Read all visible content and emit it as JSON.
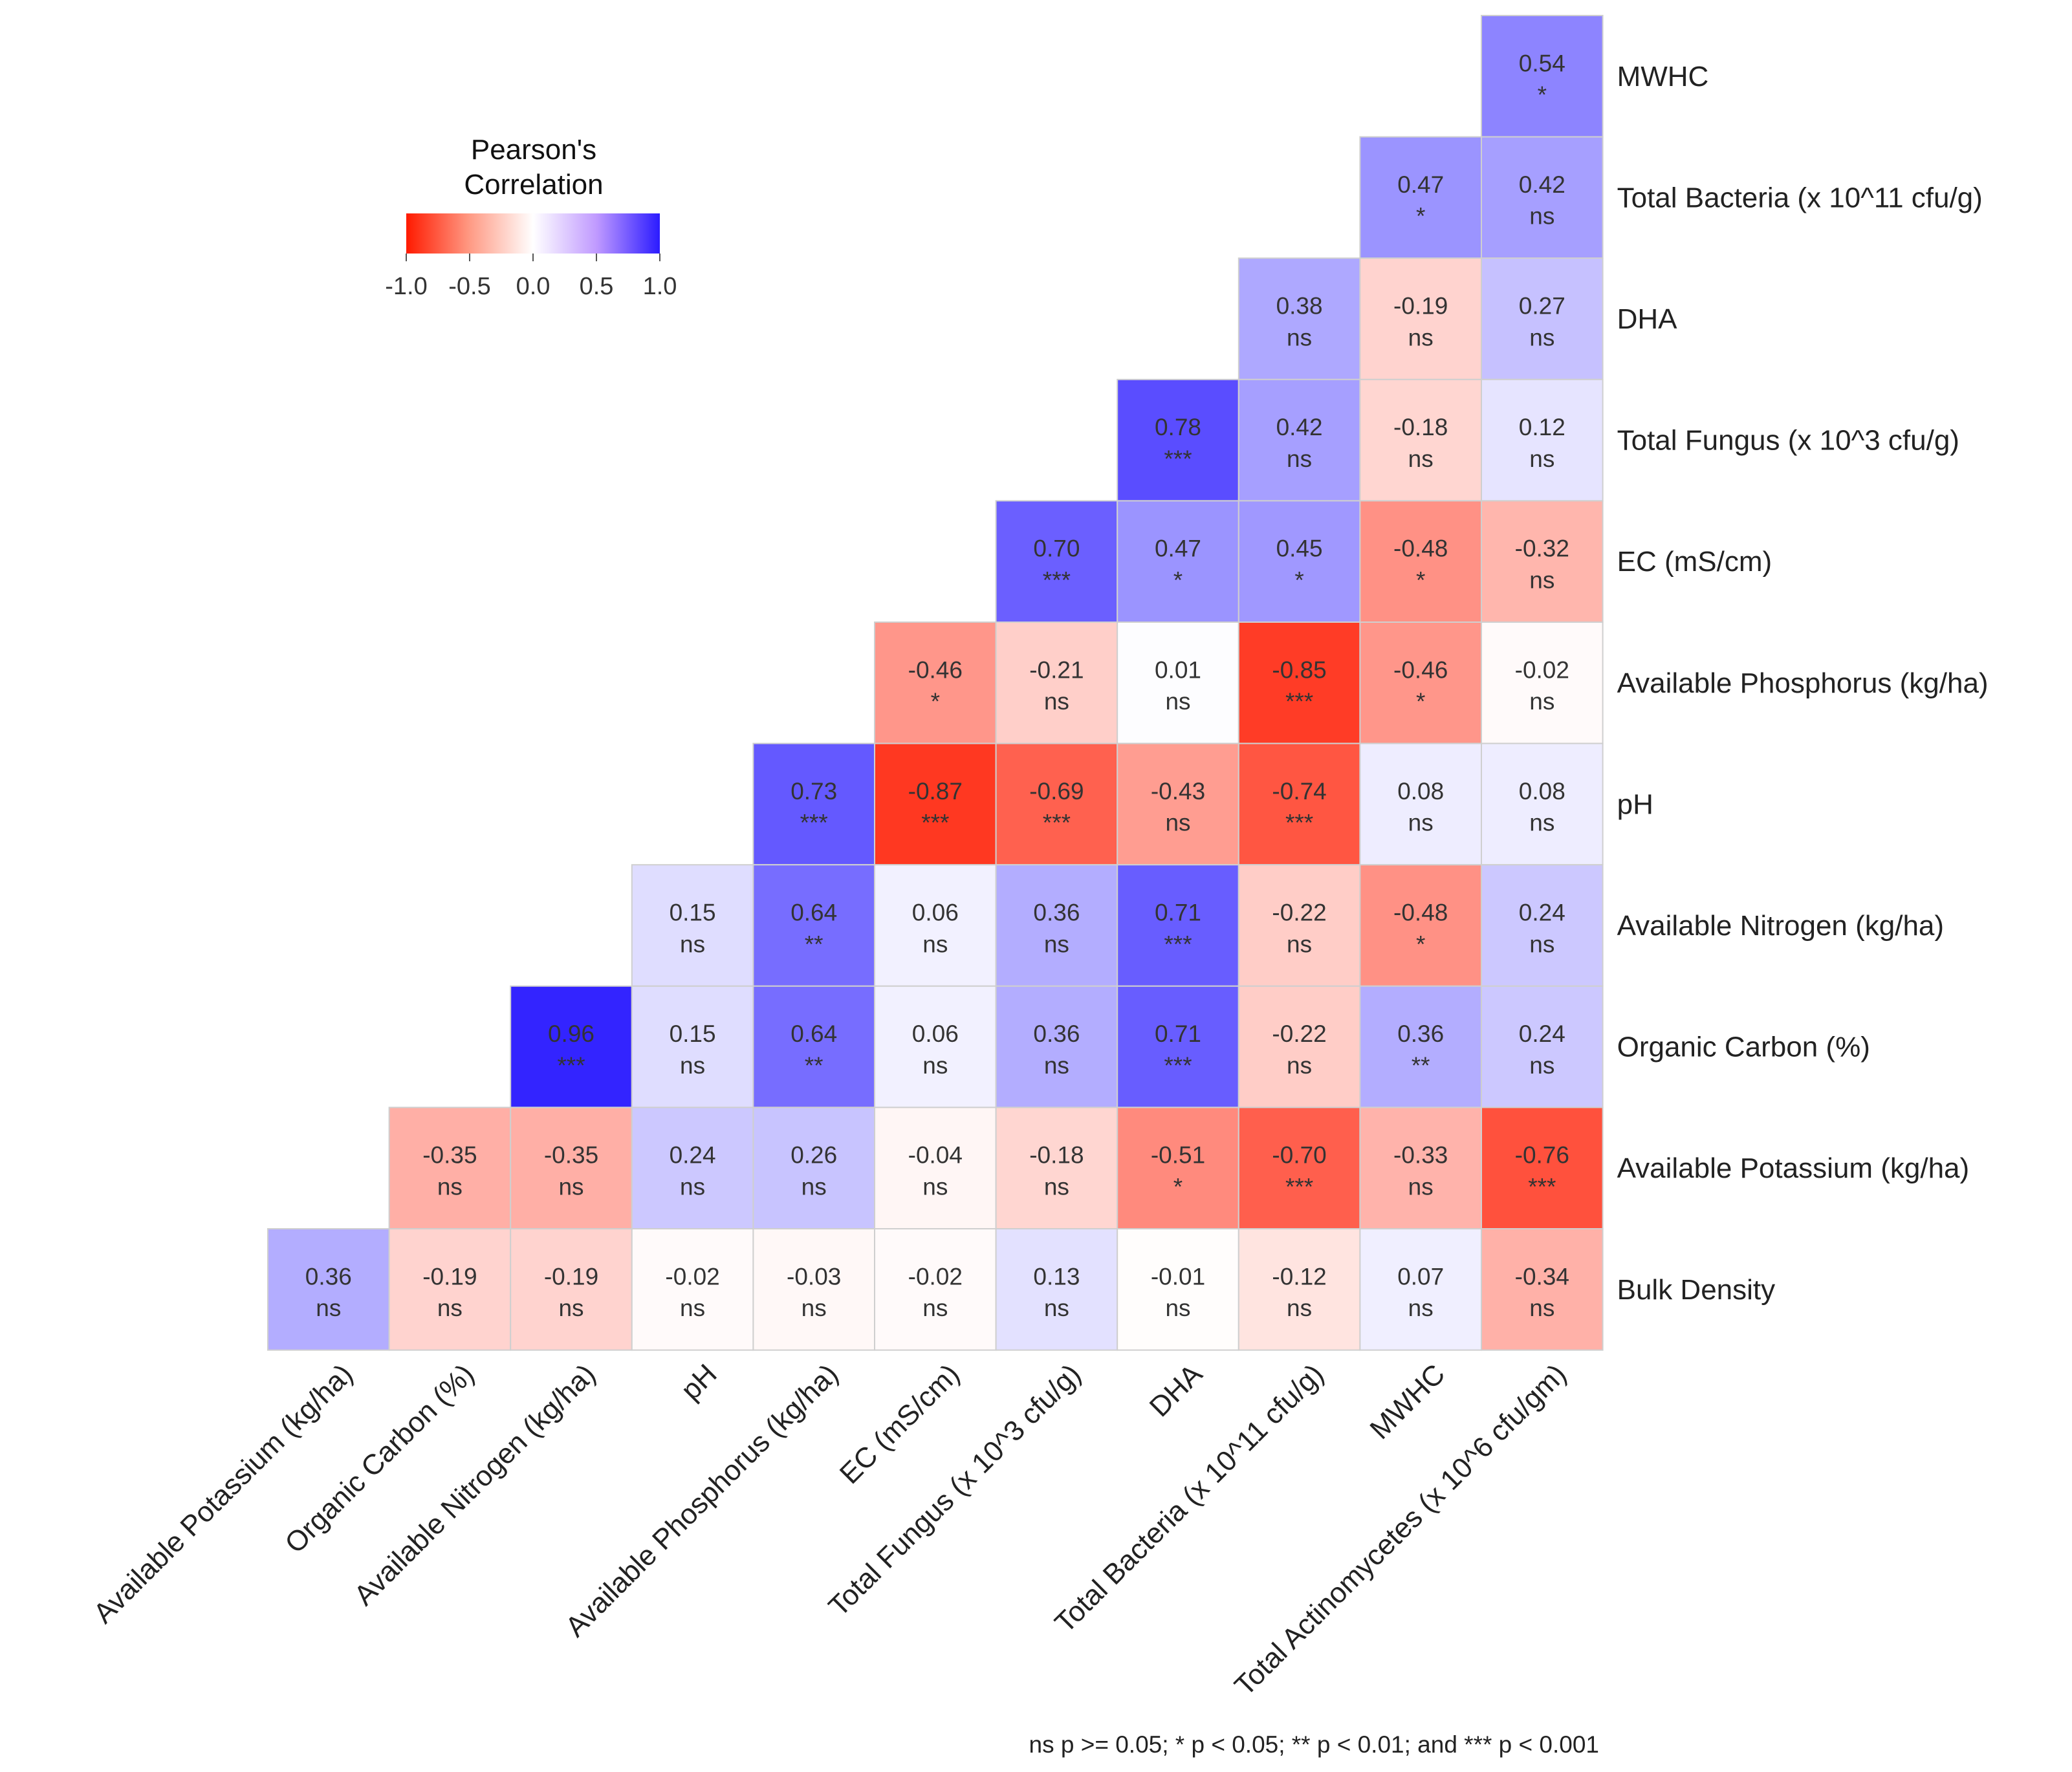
{
  "chart_data": {
    "type": "heatmap",
    "title": "",
    "legend": {
      "title_lines": [
        "Pearson's",
        "Correlation"
      ],
      "ticks": [
        "-1.0",
        "-0.5",
        "0.0",
        "0.5",
        "1.0"
      ],
      "range": [
        -1,
        1
      ],
      "colors": {
        "low": "#ff1a00",
        "mid": "#ffffff",
        "high": "#2b1bff"
      },
      "placement": "top-left"
    },
    "rows": [
      "MWHC",
      "Total Bacteria (x 10^11 cfu/g)",
      "DHA",
      "Total Fungus (x 10^3 cfu/g)",
      "EC (mS/cm)",
      "Available Phosphorus (kg/ha)",
      "pH",
      "Available Nitrogen (kg/ha)",
      "Organic Carbon (%)",
      "Available Potassium (kg/ha)",
      "Bulk Density"
    ],
    "columns": [
      "Available Potassium (kg/ha)",
      "Organic Carbon (%)",
      "Available Nitrogen (kg/ha)",
      "pH",
      "Available Phosphorus (kg/ha)",
      "EC (mS/cm)",
      "Total Fungus (x 10^3 cfu/g)",
      "DHA",
      "Total Bacteria (x 10^11 cfu/g)",
      "MWHC",
      "Total Actinomycetes (x 10^6 cfu/gm)"
    ],
    "cells": [
      {
        "row": 0,
        "col": 10,
        "value": 0.54,
        "label": "0.54",
        "sig": "*"
      },
      {
        "row": 1,
        "col": 9,
        "value": 0.47,
        "label": "0.47",
        "sig": "*"
      },
      {
        "row": 1,
        "col": 10,
        "value": 0.42,
        "label": "0.42",
        "sig": "ns"
      },
      {
        "row": 2,
        "col": 8,
        "value": 0.38,
        "label": "0.38",
        "sig": "ns"
      },
      {
        "row": 2,
        "col": 9,
        "value": -0.19,
        "label": "-0.19",
        "sig": "ns"
      },
      {
        "row": 2,
        "col": 10,
        "value": 0.27,
        "label": "0.27",
        "sig": "ns"
      },
      {
        "row": 3,
        "col": 7,
        "value": 0.78,
        "label": "0.78",
        "sig": "***"
      },
      {
        "row": 3,
        "col": 8,
        "value": 0.42,
        "label": "0.42",
        "sig": "ns"
      },
      {
        "row": 3,
        "col": 9,
        "value": -0.18,
        "label": "-0.18",
        "sig": "ns"
      },
      {
        "row": 3,
        "col": 10,
        "value": 0.12,
        "label": "0.12",
        "sig": "ns"
      },
      {
        "row": 4,
        "col": 6,
        "value": 0.7,
        "label": "0.70",
        "sig": "***"
      },
      {
        "row": 4,
        "col": 7,
        "value": 0.47,
        "label": "0.47",
        "sig": "*"
      },
      {
        "row": 4,
        "col": 8,
        "value": 0.45,
        "label": "0.45",
        "sig": "*"
      },
      {
        "row": 4,
        "col": 9,
        "value": -0.48,
        "label": "-0.48",
        "sig": "*"
      },
      {
        "row": 4,
        "col": 10,
        "value": -0.32,
        "label": "-0.32",
        "sig": "ns"
      },
      {
        "row": 5,
        "col": 5,
        "value": -0.46,
        "label": "-0.46",
        "sig": "*"
      },
      {
        "row": 5,
        "col": 6,
        "value": -0.21,
        "label": "-0.21",
        "sig": "ns"
      },
      {
        "row": 5,
        "col": 7,
        "value": 0.01,
        "label": "0.01",
        "sig": "ns"
      },
      {
        "row": 5,
        "col": 8,
        "value": -0.85,
        "label": "-0.85",
        "sig": "***"
      },
      {
        "row": 5,
        "col": 9,
        "value": -0.46,
        "label": "-0.46",
        "sig": "*"
      },
      {
        "row": 5,
        "col": 10,
        "value": -0.02,
        "label": "-0.02",
        "sig": "ns"
      },
      {
        "row": 6,
        "col": 4,
        "value": 0.73,
        "label": "0.73",
        "sig": "***"
      },
      {
        "row": 6,
        "col": 5,
        "value": -0.87,
        "label": "-0.87",
        "sig": "***"
      },
      {
        "row": 6,
        "col": 6,
        "value": -0.69,
        "label": "-0.69",
        "sig": "***"
      },
      {
        "row": 6,
        "col": 7,
        "value": -0.43,
        "label": "-0.43",
        "sig": "ns"
      },
      {
        "row": 6,
        "col": 8,
        "value": -0.74,
        "label": "-0.74",
        "sig": "***"
      },
      {
        "row": 6,
        "col": 9,
        "value": 0.08,
        "label": "0.08",
        "sig": "ns"
      },
      {
        "row": 6,
        "col": 10,
        "value": 0.08,
        "label": "0.08",
        "sig": "ns"
      },
      {
        "row": 7,
        "col": 3,
        "value": 0.15,
        "label": "0.15",
        "sig": "ns"
      },
      {
        "row": 7,
        "col": 4,
        "value": 0.64,
        "label": "0.64",
        "sig": "**"
      },
      {
        "row": 7,
        "col": 5,
        "value": 0.06,
        "label": "0.06",
        "sig": "ns"
      },
      {
        "row": 7,
        "col": 6,
        "value": 0.36,
        "label": "0.36",
        "sig": "ns"
      },
      {
        "row": 7,
        "col": 7,
        "value": 0.71,
        "label": "0.71",
        "sig": "***"
      },
      {
        "row": 7,
        "col": 8,
        "value": -0.22,
        "label": "-0.22",
        "sig": "ns"
      },
      {
        "row": 7,
        "col": 9,
        "value": -0.48,
        "label": "-0.48",
        "sig": "*"
      },
      {
        "row": 7,
        "col": 10,
        "value": 0.24,
        "label": "0.24",
        "sig": "ns"
      },
      {
        "row": 8,
        "col": 2,
        "value": 0.96,
        "label": "0.96",
        "sig": "***"
      },
      {
        "row": 8,
        "col": 3,
        "value": 0.15,
        "label": "0.15",
        "sig": "ns"
      },
      {
        "row": 8,
        "col": 4,
        "value": 0.64,
        "label": "0.64",
        "sig": "**"
      },
      {
        "row": 8,
        "col": 5,
        "value": 0.06,
        "label": "0.06",
        "sig": "ns"
      },
      {
        "row": 8,
        "col": 6,
        "value": 0.36,
        "label": "0.36",
        "sig": "ns"
      },
      {
        "row": 8,
        "col": 7,
        "value": 0.71,
        "label": "0.71",
        "sig": "***"
      },
      {
        "row": 8,
        "col": 8,
        "value": -0.22,
        "label": "-0.22",
        "sig": "ns"
      },
      {
        "row": 8,
        "col": 9,
        "value": 0.36,
        "label": "0.36",
        "sig": "**"
      },
      {
        "row": 8,
        "col": 10,
        "value": 0.24,
        "label": "0.24",
        "sig": "ns"
      },
      {
        "row": 9,
        "col": 1,
        "value": -0.35,
        "label": "-0.35",
        "sig": "ns"
      },
      {
        "row": 9,
        "col": 2,
        "value": -0.35,
        "label": "-0.35",
        "sig": "ns"
      },
      {
        "row": 9,
        "col": 3,
        "value": 0.24,
        "label": "0.24",
        "sig": "ns"
      },
      {
        "row": 9,
        "col": 4,
        "value": 0.26,
        "label": "0.26",
        "sig": "ns"
      },
      {
        "row": 9,
        "col": 5,
        "value": -0.04,
        "label": "-0.04",
        "sig": "ns"
      },
      {
        "row": 9,
        "col": 6,
        "value": -0.18,
        "label": "-0.18",
        "sig": "ns"
      },
      {
        "row": 9,
        "col": 7,
        "value": -0.51,
        "label": "-0.51",
        "sig": "*"
      },
      {
        "row": 9,
        "col": 8,
        "value": -0.7,
        "label": "-0.70",
        "sig": "***"
      },
      {
        "row": 9,
        "col": 9,
        "value": -0.33,
        "label": "-0.33",
        "sig": "ns"
      },
      {
        "row": 9,
        "col": 10,
        "value": -0.76,
        "label": "-0.76",
        "sig": "***"
      },
      {
        "row": 10,
        "col": 0,
        "value": 0.36,
        "label": "0.36",
        "sig": "ns"
      },
      {
        "row": 10,
        "col": 1,
        "value": -0.19,
        "label": "-0.19",
        "sig": "ns"
      },
      {
        "row": 10,
        "col": 2,
        "value": -0.19,
        "label": "-0.19",
        "sig": "ns"
      },
      {
        "row": 10,
        "col": 3,
        "value": -0.02,
        "label": "-0.02",
        "sig": "ns"
      },
      {
        "row": 10,
        "col": 4,
        "value": -0.03,
        "label": "-0.03",
        "sig": "ns"
      },
      {
        "row": 10,
        "col": 5,
        "value": -0.02,
        "label": "-0.02",
        "sig": "ns"
      },
      {
        "row": 10,
        "col": 6,
        "value": 0.13,
        "label": "0.13",
        "sig": "ns"
      },
      {
        "row": 10,
        "col": 7,
        "value": -0.01,
        "label": "-0.01",
        "sig": "ns"
      },
      {
        "row": 10,
        "col": 8,
        "value": -0.12,
        "label": "-0.12",
        "sig": "ns"
      },
      {
        "row": 10,
        "col": 9,
        "value": 0.07,
        "label": "0.07",
        "sig": "ns"
      },
      {
        "row": 10,
        "col": 10,
        "value": -0.34,
        "label": "-0.34",
        "sig": "ns"
      }
    ],
    "caption": "ns p >= 0.05; * p < 0.05; ** p < 0.01; and *** p < 0.001"
  }
}
